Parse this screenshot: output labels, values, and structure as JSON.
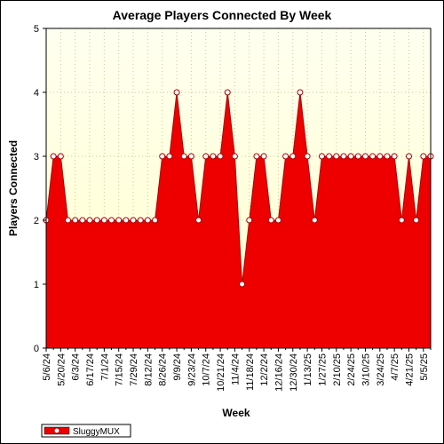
{
  "chart_data": {
    "type": "area",
    "title": "Average Players Connected By Week",
    "xlabel": "Week",
    "ylabel": "Players Connected",
    "ylim": [
      0,
      5
    ],
    "y_ticks": [
      "0",
      "1",
      "2",
      "3",
      "4",
      "5"
    ],
    "x_tick_labels": [
      "5/6/24",
      "5/20/24",
      "6/3/24",
      "6/17/24",
      "7/1/24",
      "7/15/24",
      "7/29/24",
      "8/12/24",
      "8/26/24",
      "9/9/24",
      "9/23/24",
      "10/7/24",
      "10/21/24",
      "11/4/24",
      "11/18/24",
      "12/2/24",
      "12/16/24",
      "12/30/24",
      "1/13/25",
      "1/27/25",
      "2/10/25",
      "2/24/25",
      "3/10/25",
      "3/24/25",
      "4/7/25",
      "4/21/25",
      "5/5/25"
    ],
    "grid": true,
    "legend_position": "bottom-left",
    "colors": {
      "area": "#ee0000",
      "line": "#aa0000",
      "plot_bg_top": "#fffff0",
      "plot_bg_bottom": "#ffffcc",
      "grid": "#c8c8a0"
    },
    "series": [
      {
        "name": "SluggyMUX",
        "values": [
          2,
          3,
          3,
          2,
          2,
          2,
          2,
          2,
          2,
          2,
          2,
          2,
          2,
          2,
          2,
          2,
          3,
          3,
          4,
          3,
          3,
          2,
          3,
          3,
          3,
          4,
          3,
          1,
          2,
          3,
          3,
          2,
          2,
          3,
          3,
          4,
          3,
          2,
          3,
          3,
          3,
          3,
          3,
          3,
          3,
          3,
          3,
          3,
          3,
          2,
          3,
          2,
          3,
          3
        ]
      }
    ]
  }
}
